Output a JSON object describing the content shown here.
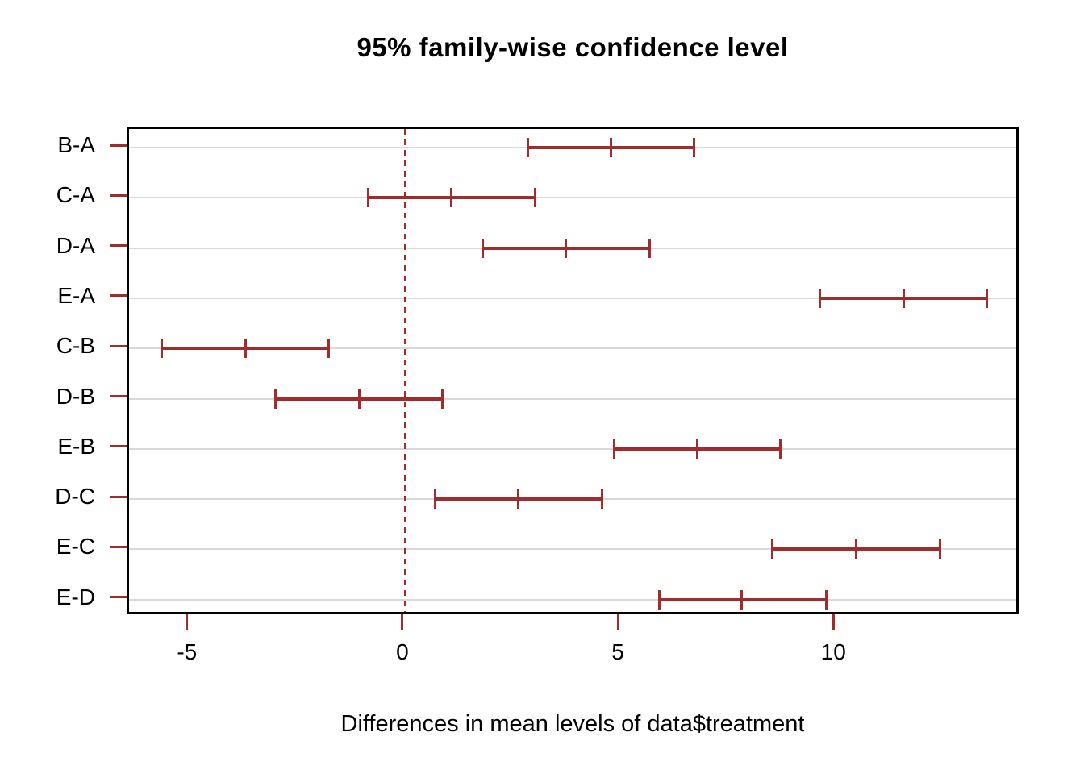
{
  "title": "95% family-wise confidence level",
  "xlabel": "Differences in mean levels of data$treatment",
  "colors": {
    "interval": "#a02d2d",
    "zero_line": "#a02d2d",
    "tick": "#a02d2d",
    "grid": "#d9d9d9",
    "box": "#000000",
    "text": "#000000",
    "background": "#ffffff"
  },
  "chart_data": {
    "type": "ci-interval",
    "title": "95% family-wise confidence level",
    "xlabel": "Differences in mean levels of data$treatment",
    "ylabel": "",
    "xlim": [
      -6.4,
      14.3
    ],
    "x_ticks": [
      -5,
      0,
      5,
      10
    ],
    "x_tick_labels": [
      "-5",
      "0",
      "5",
      "10"
    ],
    "zero_reference_line": 0,
    "grid": true,
    "legend": false,
    "categories": [
      "B-A",
      "C-A",
      "D-A",
      "E-A",
      "C-B",
      "D-B",
      "E-B",
      "D-C",
      "E-C",
      "E-D"
    ],
    "comparisons": [
      {
        "label": "B-A",
        "lwr": 2.85,
        "diff": 4.78,
        "upr": 6.71
      },
      {
        "label": "C-A",
        "lwr": -0.85,
        "diff": 1.08,
        "upr": 3.02
      },
      {
        "label": "D-A",
        "lwr": 1.8,
        "diff": 3.73,
        "upr": 5.68
      },
      {
        "label": "E-A",
        "lwr": 9.63,
        "diff": 11.58,
        "upr": 13.51
      },
      {
        "label": "C-B",
        "lwr": -5.64,
        "diff": -3.7,
        "upr": -1.76
      },
      {
        "label": "D-B",
        "lwr": -3.0,
        "diff": -1.06,
        "upr": 0.87
      },
      {
        "label": "E-B",
        "lwr": 4.85,
        "diff": 6.78,
        "upr": 8.71
      },
      {
        "label": "D-C",
        "lwr": 0.7,
        "diff": 2.63,
        "upr": 4.57
      },
      {
        "label": "E-C",
        "lwr": 8.53,
        "diff": 10.47,
        "upr": 12.41
      },
      {
        "label": "E-D",
        "lwr": 5.9,
        "diff": 7.82,
        "upr": 9.78
      }
    ]
  }
}
